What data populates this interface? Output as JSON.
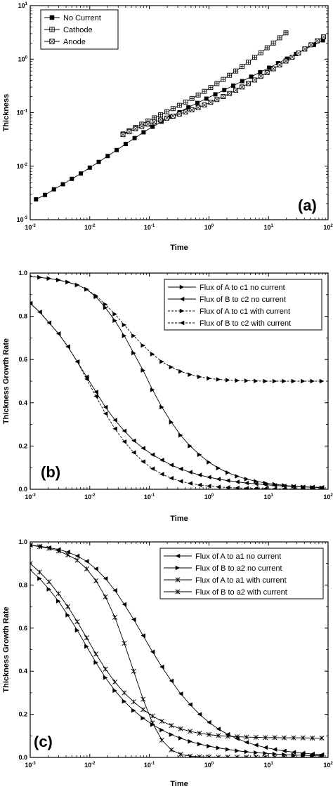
{
  "chart_data": [
    {
      "id": "a",
      "type": "line",
      "panel_label": "(a)",
      "xlabel": "Time",
      "ylabel": "Thickness",
      "xscale": "log",
      "yscale": "log",
      "xlim": [
        0.001,
        100
      ],
      "ylim": [
        0.001,
        10
      ],
      "xticks": [
        {
          "v": 0.001,
          "b": "10",
          "e": "-3"
        },
        {
          "v": 0.01,
          "b": "10",
          "e": "-2"
        },
        {
          "v": 0.1,
          "b": "10",
          "e": "-1"
        },
        {
          "v": 1,
          "b": "10",
          "e": "0"
        },
        {
          "v": 10,
          "b": "10",
          "e": "1"
        },
        {
          "v": 100,
          "b": "10",
          "e": "2"
        }
      ],
      "yticks": [
        {
          "v": 0.001,
          "b": "10",
          "e": "-3"
        },
        {
          "v": 0.01,
          "b": "10",
          "e": "-2"
        },
        {
          "v": 0.1,
          "b": "10",
          "e": "-1"
        },
        {
          "v": 1,
          "b": "10",
          "e": "0"
        },
        {
          "v": 10,
          "b": "10",
          "e": "1"
        }
      ],
      "legend_position": "top-left",
      "series": [
        {
          "name": "No Current",
          "marker": "square-filled",
          "x": [
            0.00125,
            0.00177,
            0.0025,
            0.00354,
            0.005,
            0.00707,
            0.01,
            0.01414,
            0.02,
            0.02828,
            0.04,
            0.05657,
            0.08,
            0.1131,
            0.16,
            0.2263,
            0.32,
            0.4525,
            0.64,
            0.905,
            1.28,
            1.81,
            2.56,
            3.62,
            5.12,
            7.24,
            10.24,
            14.48,
            20.48,
            28.96,
            40.96,
            57.93,
            81.92
          ],
          "y": [
            0.0024,
            0.0029,
            0.0037,
            0.0046,
            0.0058,
            0.0073,
            0.0094,
            0.012,
            0.0155,
            0.02,
            0.026,
            0.0335,
            0.043,
            0.0545,
            0.068,
            0.084,
            0.102,
            0.126,
            0.152,
            0.183,
            0.22,
            0.265,
            0.32,
            0.388,
            0.47,
            0.57,
            0.69,
            0.84,
            1.02,
            1.25,
            1.52,
            1.85,
            2.25
          ]
        },
        {
          "name": "Cathode",
          "marker": "square-grid",
          "x": [
            0.0361,
            0.0459,
            0.0585,
            0.0746,
            0.095,
            0.121,
            0.154,
            0.197,
            0.25,
            0.319,
            0.406,
            0.518,
            0.66,
            0.84,
            1.071,
            1.364,
            1.738,
            2.215,
            2.822,
            3.596,
            4.582,
            5.838,
            7.438,
            9.477,
            12.08,
            15.39,
            19.61
          ],
          "y": [
            0.04,
            0.046,
            0.053,
            0.061,
            0.07,
            0.08,
            0.091,
            0.104,
            0.119,
            0.137,
            0.158,
            0.184,
            0.214,
            0.25,
            0.295,
            0.35,
            0.418,
            0.5,
            0.6,
            0.73,
            0.88,
            1.08,
            1.32,
            1.63,
            2.0,
            2.5,
            3.1
          ]
        },
        {
          "name": "Anode",
          "marker": "square-cross",
          "x": [
            0.0361,
            0.0459,
            0.0585,
            0.0746,
            0.095,
            0.121,
            0.154,
            0.197,
            0.25,
            0.319,
            0.406,
            0.518,
            0.66,
            0.84,
            1.071,
            1.364,
            1.738,
            2.215,
            2.822,
            3.596,
            4.582,
            5.838,
            7.438,
            9.477,
            12.08,
            15.39,
            19.61,
            24.99,
            31.84,
            40.58,
            51.71,
            65.89,
            83.95
          ],
          "y": [
            0.039,
            0.044,
            0.05,
            0.0555,
            0.061,
            0.067,
            0.073,
            0.079,
            0.086,
            0.094,
            0.103,
            0.113,
            0.125,
            0.139,
            0.156,
            0.176,
            0.2,
            0.228,
            0.262,
            0.302,
            0.35,
            0.408,
            0.478,
            0.56,
            0.66,
            0.78,
            0.92,
            1.09,
            1.3,
            1.55,
            1.85,
            2.2,
            2.6
          ]
        }
      ]
    },
    {
      "id": "b",
      "type": "line",
      "panel_label": "(b)",
      "xlabel": "Time",
      "ylabel": "Thickness Growth Rate",
      "xscale": "log",
      "yscale": "linear",
      "xlim": [
        0.001,
        100
      ],
      "ylim": [
        0,
        1
      ],
      "xticks": [
        {
          "v": 0.001,
          "b": "10",
          "e": "-3"
        },
        {
          "v": 0.01,
          "b": "10",
          "e": "-2"
        },
        {
          "v": 0.1,
          "b": "10",
          "e": "-1"
        },
        {
          "v": 1,
          "b": "10",
          "e": "0"
        },
        {
          "v": 10,
          "b": "10",
          "e": "1"
        },
        {
          "v": 100,
          "b": "10",
          "e": "2"
        }
      ],
      "yticks": [
        {
          "v": 0,
          "t": "0.0"
        },
        {
          "v": 0.2,
          "t": "0.2"
        },
        {
          "v": 0.4,
          "t": "0.4"
        },
        {
          "v": 0.6,
          "t": "0.6"
        },
        {
          "v": 0.8,
          "t": "0.8"
        },
        {
          "v": 1.0,
          "t": "1.0"
        }
      ],
      "legend_position": "top-right",
      "series": [
        {
          "name": "Flux of A to c1 no current",
          "marker": "tri-right",
          "line": "solid",
          "x": [
            0.001,
            0.00144,
            0.00207,
            0.00298,
            0.00428,
            0.00616,
            0.00886,
            0.0127,
            0.0183,
            0.0264,
            0.0379,
            0.0546,
            0.0785,
            0.113,
            0.162,
            0.234,
            0.336,
            0.483,
            0.695,
            1.0,
            1.44,
            2.07,
            2.98,
            4.28,
            6.16,
            8.86,
            12.7,
            18.3,
            26.4,
            37.9,
            54.6,
            78.5
          ],
          "y": [
            0.985,
            0.98,
            0.975,
            0.968,
            0.958,
            0.945,
            0.925,
            0.89,
            0.84,
            0.78,
            0.71,
            0.63,
            0.55,
            0.46,
            0.38,
            0.31,
            0.25,
            0.2,
            0.16,
            0.125,
            0.098,
            0.077,
            0.06,
            0.047,
            0.037,
            0.029,
            0.023,
            0.018,
            0.014,
            0.011,
            0.009,
            0.007
          ]
        },
        {
          "name": "Flux of B to c2 no current",
          "marker": "tri-left",
          "line": "solid",
          "x": [
            0.001,
            0.00144,
            0.00207,
            0.00298,
            0.00428,
            0.00616,
            0.00886,
            0.0127,
            0.0183,
            0.0264,
            0.0379,
            0.0546,
            0.0785,
            0.113,
            0.162,
            0.234,
            0.336,
            0.483,
            0.695,
            1.0,
            1.44,
            2.07,
            2.98,
            4.28,
            6.16,
            8.86,
            12.7,
            18.3,
            26.4,
            37.9,
            54.6,
            78.5
          ],
          "y": [
            0.86,
            0.82,
            0.77,
            0.72,
            0.66,
            0.59,
            0.52,
            0.45,
            0.38,
            0.32,
            0.27,
            0.225,
            0.19,
            0.16,
            0.135,
            0.112,
            0.094,
            0.079,
            0.066,
            0.056,
            0.047,
            0.04,
            0.034,
            0.029,
            0.025,
            0.021,
            0.018,
            0.015,
            0.013,
            0.011,
            0.01,
            0.009
          ]
        },
        {
          "name": "Flux of A to c1 with current",
          "marker": "tri-right",
          "line": "dashed",
          "x": [
            0.001,
            0.00144,
            0.00207,
            0.00298,
            0.00428,
            0.00616,
            0.00886,
            0.0127,
            0.0183,
            0.0264,
            0.0379,
            0.0546,
            0.0785,
            0.113,
            0.162,
            0.234,
            0.336,
            0.483,
            0.695,
            1.0,
            1.44,
            2.07,
            2.98,
            4.28,
            6.16,
            8.86,
            12.7,
            18.3,
            26.4,
            37.9,
            54.6,
            78.5
          ],
          "y": [
            0.985,
            0.98,
            0.975,
            0.968,
            0.958,
            0.945,
            0.925,
            0.895,
            0.855,
            0.81,
            0.76,
            0.71,
            0.665,
            0.625,
            0.59,
            0.565,
            0.545,
            0.53,
            0.52,
            0.513,
            0.508,
            0.505,
            0.503,
            0.502,
            0.501,
            0.5,
            0.5,
            0.5,
            0.5,
            0.5,
            0.5,
            0.5
          ]
        },
        {
          "name": "Flux of B to c2 with current",
          "marker": "tri-left",
          "line": "dashed",
          "x": [
            0.001,
            0.00144,
            0.00207,
            0.00298,
            0.00428,
            0.00616,
            0.00886,
            0.0127,
            0.0183,
            0.0264,
            0.0379,
            0.0546,
            0.0785,
            0.113,
            0.162,
            0.234,
            0.336,
            0.483,
            0.695,
            1.0,
            1.44,
            2.07,
            2.98,
            4.28,
            6.16,
            8.86,
            12.7,
            18.3,
            26.4,
            37.9,
            54.6,
            78.5
          ],
          "y": [
            0.86,
            0.82,
            0.77,
            0.72,
            0.66,
            0.59,
            0.51,
            0.43,
            0.35,
            0.28,
            0.22,
            0.17,
            0.128,
            0.095,
            0.07,
            0.051,
            0.037,
            0.027,
            0.02,
            0.015,
            0.011,
            0.008,
            0.006,
            0.005,
            0.004,
            0.003,
            0.002,
            0.002,
            0.001,
            0.001,
            0.001,
            0.001
          ]
        }
      ]
    },
    {
      "id": "c",
      "type": "line",
      "panel_label": "(c)",
      "xlabel": "Time",
      "ylabel": "Thickness Growth Rate",
      "xscale": "log",
      "yscale": "linear",
      "xlim": [
        0.001,
        100
      ],
      "ylim": [
        0,
        1
      ],
      "xticks": [
        {
          "v": 0.001,
          "b": "10",
          "e": "-3"
        },
        {
          "v": 0.01,
          "b": "10",
          "e": "-2"
        },
        {
          "v": 0.1,
          "b": "10",
          "e": "-1"
        },
        {
          "v": 1,
          "b": "10",
          "e": "0"
        },
        {
          "v": 10,
          "b": "10",
          "e": "1"
        },
        {
          "v": 100,
          "b": "10",
          "e": "2"
        }
      ],
      "yticks": [
        {
          "v": 0,
          "t": "0.0"
        },
        {
          "v": 0.2,
          "t": "0.2"
        },
        {
          "v": 0.4,
          "t": "0.4"
        },
        {
          "v": 0.6,
          "t": "0.6"
        },
        {
          "v": 0.8,
          "t": "0.8"
        },
        {
          "v": 1.0,
          "t": "1.0"
        }
      ],
      "legend_position": "top-right",
      "series": [
        {
          "name": "Flux of A to a1 no current",
          "marker": "tri-left",
          "line": "solid",
          "x": [
            0.001,
            0.00144,
            0.00207,
            0.00298,
            0.00428,
            0.00616,
            0.00886,
            0.0127,
            0.0183,
            0.0264,
            0.0379,
            0.0546,
            0.0785,
            0.113,
            0.162,
            0.234,
            0.336,
            0.483,
            0.695,
            1.0,
            1.44,
            2.07,
            2.98,
            4.28,
            6.16,
            8.86,
            12.7,
            18.3,
            26.4,
            37.9,
            54.6,
            78.5
          ],
          "y": [
            0.985,
            0.98,
            0.973,
            0.965,
            0.953,
            0.935,
            0.91,
            0.875,
            0.83,
            0.775,
            0.71,
            0.64,
            0.565,
            0.49,
            0.42,
            0.355,
            0.295,
            0.245,
            0.2,
            0.163,
            0.132,
            0.107,
            0.087,
            0.07,
            0.057,
            0.046,
            0.037,
            0.03,
            0.024,
            0.02,
            0.016,
            0.013
          ]
        },
        {
          "name": "Flux of B to a2 no current",
          "marker": "tri-right",
          "line": "solid",
          "x": [
            0.001,
            0.00144,
            0.00207,
            0.00298,
            0.00428,
            0.00616,
            0.00886,
            0.0127,
            0.0183,
            0.0264,
            0.0379,
            0.0546,
            0.0785,
            0.113,
            0.162,
            0.234,
            0.336,
            0.483,
            0.695,
            1.0,
            1.44,
            2.07,
            2.98,
            4.28,
            6.16,
            8.86,
            12.7,
            18.3,
            26.4,
            37.9,
            54.6,
            78.5
          ],
          "y": [
            0.87,
            0.83,
            0.78,
            0.725,
            0.66,
            0.59,
            0.515,
            0.44,
            0.37,
            0.31,
            0.26,
            0.218,
            0.182,
            0.152,
            0.127,
            0.106,
            0.089,
            0.074,
            0.062,
            0.052,
            0.044,
            0.037,
            0.031,
            0.026,
            0.022,
            0.019,
            0.016,
            0.013,
            0.011,
            0.01,
            0.008,
            0.007
          ]
        },
        {
          "name": "Flux of A to a1 with current",
          "marker": "x-star",
          "line": "solid",
          "x": [
            0.001,
            0.00144,
            0.00207,
            0.00298,
            0.00428,
            0.00616,
            0.00886,
            0.0127,
            0.0183,
            0.0264,
            0.0379,
            0.0546,
            0.0785,
            0.113,
            0.162,
            0.234,
            0.336,
            0.483,
            0.695,
            1.0,
            1.44,
            2.07,
            2.98,
            4.28,
            6.16,
            8.86,
            12.7,
            18.3,
            26.4,
            37.9,
            54.6,
            78.5
          ],
          "y": [
            0.985,
            0.978,
            0.97,
            0.958,
            0.94,
            0.915,
            0.875,
            0.82,
            0.745,
            0.65,
            0.53,
            0.4,
            0.27,
            0.16,
            0.08,
            0.035,
            0.014,
            0.006,
            0.003,
            0.002,
            0.001,
            0.001,
            0.001,
            0.001,
            0.001,
            0.001,
            0.001,
            0.001,
            0.001,
            0.001,
            0.001,
            0.001
          ]
        },
        {
          "name": "Flux of B to a2 with current",
          "marker": "x-star",
          "line": "solid",
          "x": [
            0.001,
            0.00144,
            0.00207,
            0.00298,
            0.00428,
            0.00616,
            0.00886,
            0.0127,
            0.0183,
            0.0264,
            0.0379,
            0.0546,
            0.0785,
            0.113,
            0.162,
            0.234,
            0.336,
            0.483,
            0.695,
            1.0,
            1.44,
            2.07,
            2.98,
            4.28,
            6.16,
            8.86,
            12.7,
            18.3,
            26.4,
            37.9,
            54.6,
            78.5
          ],
          "y": [
            0.9,
            0.86,
            0.815,
            0.76,
            0.7,
            0.63,
            0.555,
            0.48,
            0.41,
            0.35,
            0.3,
            0.258,
            0.222,
            0.192,
            0.168,
            0.148,
            0.133,
            0.121,
            0.112,
            0.106,
            0.101,
            0.098,
            0.096,
            0.094,
            0.093,
            0.092,
            0.092,
            0.091,
            0.091,
            0.091,
            0.09,
            0.09
          ]
        }
      ]
    }
  ]
}
